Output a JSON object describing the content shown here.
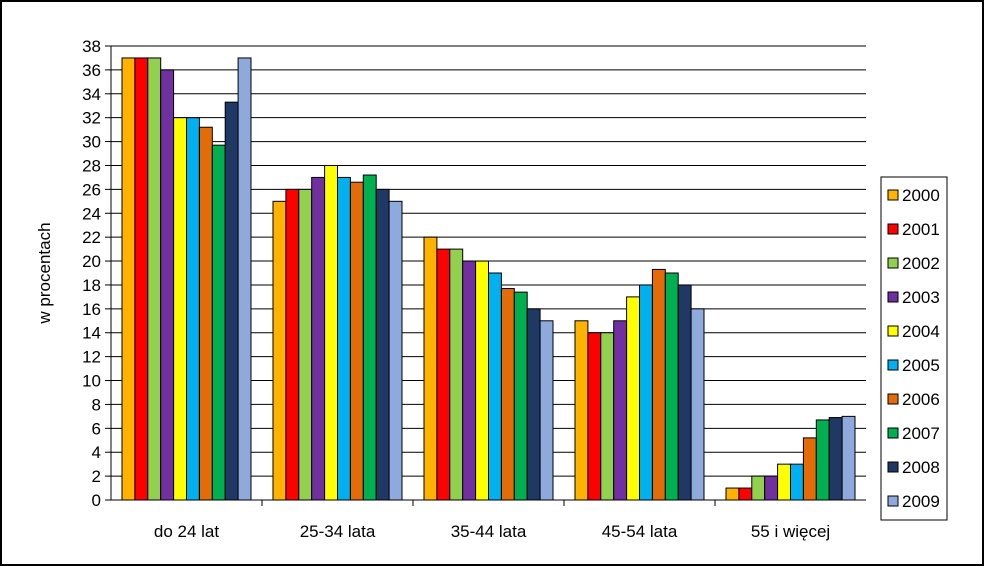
{
  "chart_data": {
    "type": "bar",
    "title": "",
    "xlabel": "",
    "ylabel": "w procentach",
    "ylim": [
      0,
      38
    ],
    "y_ticks": [
      "0",
      "2",
      "4",
      "6",
      "8",
      "10",
      "12",
      "14",
      "16",
      "18",
      "20",
      "22",
      "24",
      "26",
      "28",
      "30",
      "32",
      "34",
      "36",
      "38"
    ],
    "grid": true,
    "legend_position": "right",
    "categories": [
      "do 24 lat",
      "25-34 lata",
      "35-44 lata",
      "45-54 lata",
      "55 i więcej"
    ],
    "series": [
      {
        "name": "2000",
        "color": "#FFB300",
        "values": [
          37,
          25,
          22,
          15,
          1
        ]
      },
      {
        "name": "2001",
        "color": "#FF0000",
        "values": [
          37,
          26,
          21,
          14,
          1
        ]
      },
      {
        "name": "2002",
        "color": "#92D050",
        "values": [
          37,
          26,
          21,
          14,
          2
        ]
      },
      {
        "name": "2003",
        "color": "#7030A0",
        "values": [
          36,
          27,
          20,
          15,
          2
        ]
      },
      {
        "name": "2004",
        "color": "#FFFF00",
        "values": [
          32,
          28,
          20,
          17,
          3
        ]
      },
      {
        "name": "2005",
        "color": "#00B0F0",
        "values": [
          32,
          27,
          19,
          18,
          3
        ]
      },
      {
        "name": "2006",
        "color": "#E36C09",
        "values": [
          31.2,
          26.6,
          17.7,
          19.3,
          5.2
        ]
      },
      {
        "name": "2007",
        "color": "#00B050",
        "values": [
          29.7,
          27.2,
          17.4,
          19,
          6.7
        ]
      },
      {
        "name": "2008",
        "color": "#1F3864",
        "values": [
          33.3,
          26,
          16,
          18,
          6.9
        ]
      },
      {
        "name": "2009",
        "color": "#8EA9DB",
        "values": [
          37,
          25,
          15,
          16,
          7
        ]
      }
    ]
  }
}
